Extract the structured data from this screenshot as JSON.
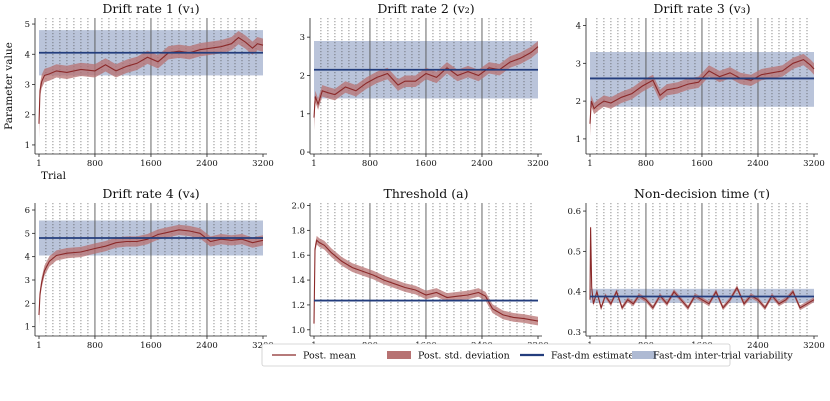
{
  "colors": {
    "mean": "#8b2a2a",
    "std": "#b77272",
    "estimate": "#233d7d",
    "variability": "#aebad3",
    "vline": "#555555",
    "axis": "#222222"
  },
  "chart_data": [
    {
      "type": "line",
      "title": "Drift rate 1 (v₁)",
      "ylabel": "Parameter value",
      "xlabel": "Trial",
      "x_ticks": [
        1,
        800,
        1600,
        2400,
        3200
      ],
      "xlim": [
        1,
        3200
      ],
      "ylim": [
        0.7,
        5.2
      ],
      "y_ticks": [
        1,
        2,
        3,
        4,
        5
      ],
      "estimate": 4.05,
      "variability": [
        3.3,
        4.8
      ],
      "std_width": 0.22,
      "solid_lines": [
        800,
        1600,
        2400
      ],
      "dotted_spacing": 100,
      "series": [
        {
          "name": "Post. mean",
          "x": [
            1,
            15,
            40,
            80,
            150,
            250,
            400,
            600,
            800,
            950,
            1100,
            1250,
            1400,
            1550,
            1700,
            1850,
            2000,
            2150,
            2300,
            2450,
            2600,
            2750,
            2850,
            2950,
            3050,
            3120,
            3200
          ],
          "y": [
            1.7,
            2.8,
            3.1,
            3.3,
            3.35,
            3.45,
            3.4,
            3.5,
            3.45,
            3.65,
            3.45,
            3.6,
            3.7,
            3.9,
            3.75,
            4.05,
            4.1,
            4.05,
            4.15,
            4.2,
            4.25,
            4.35,
            4.55,
            4.4,
            4.2,
            4.35,
            4.3
          ]
        }
      ]
    },
    {
      "type": "line",
      "title": "Drift rate 2 (v₂)",
      "x_ticks": [
        1,
        800,
        1600,
        2400,
        3200
      ],
      "xlim": [
        1,
        3200
      ],
      "ylim": [
        -0.05,
        3.5
      ],
      "y_ticks": [
        0,
        1,
        2,
        3
      ],
      "estimate": 2.15,
      "variability": [
        1.4,
        2.9
      ],
      "std_width": 0.15,
      "solid_lines": [
        800,
        1600,
        2400
      ],
      "dotted_spacing": 100,
      "series": [
        {
          "name": "Post. mean",
          "x": [
            1,
            20,
            60,
            120,
            200,
            300,
            450,
            600,
            750,
            900,
            1050,
            1200,
            1300,
            1450,
            1600,
            1750,
            1900,
            2050,
            2200,
            2350,
            2500,
            2650,
            2800,
            2950,
            3100,
            3200
          ],
          "y": [
            0.9,
            1.45,
            1.25,
            1.6,
            1.55,
            1.5,
            1.7,
            1.6,
            1.8,
            1.95,
            2.05,
            1.75,
            1.85,
            1.85,
            2.05,
            1.95,
            2.2,
            2.0,
            2.1,
            2.0,
            2.2,
            2.15,
            2.35,
            2.45,
            2.6,
            2.75
          ]
        }
      ]
    },
    {
      "type": "line",
      "title": "Drift rate 3 (v₃)",
      "x_ticks": [
        1,
        800,
        1600,
        2400,
        3200
      ],
      "xlim": [
        1,
        3200
      ],
      "ylim": [
        0.6,
        4.2
      ],
      "y_ticks": [
        1,
        2,
        3,
        4
      ],
      "estimate": 2.6,
      "variability": [
        1.85,
        3.3
      ],
      "std_width": 0.15,
      "solid_lines": [
        800,
        1600,
        2400
      ],
      "dotted_spacing": 100,
      "series": [
        {
          "name": "Post. mean",
          "x": [
            1,
            20,
            60,
            120,
            200,
            300,
            450,
            600,
            750,
            900,
            1000,
            1100,
            1250,
            1400,
            1550,
            1700,
            1850,
            2000,
            2150,
            2300,
            2450,
            2600,
            2750,
            2900,
            3050,
            3150,
            3200
          ],
          "y": [
            1.4,
            2.0,
            1.8,
            1.9,
            2.0,
            1.95,
            2.1,
            2.2,
            2.4,
            2.55,
            2.15,
            2.3,
            2.35,
            2.45,
            2.5,
            2.8,
            2.65,
            2.75,
            2.6,
            2.55,
            2.7,
            2.75,
            2.8,
            3.0,
            3.1,
            2.95,
            2.85
          ]
        }
      ]
    },
    {
      "type": "line",
      "title": "Drift rate 4 (v₄)",
      "x_ticks": [
        1,
        800,
        1600,
        2400,
        3200
      ],
      "xlim": [
        1,
        3200
      ],
      "ylim": [
        0.6,
        6.3
      ],
      "y_ticks": [
        1,
        2,
        3,
        4,
        5,
        6
      ],
      "estimate": 4.8,
      "variability": [
        4.05,
        5.55
      ],
      "std_width": 0.22,
      "solid_lines": [
        800,
        1600,
        2400
      ],
      "dotted_spacing": 100,
      "series": [
        {
          "name": "Post. mean",
          "x": [
            1,
            15,
            40,
            80,
            150,
            250,
            400,
            600,
            800,
            950,
            1100,
            1250,
            1400,
            1550,
            1700,
            1850,
            2000,
            2150,
            2300,
            2450,
            2600,
            2750,
            2900,
            3050,
            3200
          ],
          "y": [
            1.5,
            2.4,
            2.9,
            3.4,
            3.8,
            4.05,
            4.15,
            4.2,
            4.35,
            4.45,
            4.6,
            4.65,
            4.65,
            4.75,
            4.95,
            5.05,
            5.15,
            5.1,
            5.0,
            4.65,
            4.75,
            4.7,
            4.75,
            4.6,
            4.7
          ]
        }
      ]
    },
    {
      "type": "line",
      "title": "Threshold (a)",
      "x_ticks": [
        1,
        800,
        1600,
        2400,
        3200
      ],
      "xlim": [
        1,
        3200
      ],
      "ylim": [
        0.95,
        2.02
      ],
      "y_ticks": [
        1.0,
        1.2,
        1.4,
        1.6,
        1.8,
        2.0
      ],
      "y_decimals": 1,
      "estimate": 1.235,
      "std_width": 0.035,
      "solid_lines": [
        800,
        1600,
        2400
      ],
      "dotted_spacing": 100,
      "series": [
        {
          "name": "Post. mean",
          "x": [
            1,
            15,
            40,
            80,
            150,
            250,
            400,
            550,
            700,
            850,
            1000,
            1150,
            1300,
            1450,
            1600,
            1750,
            1900,
            2050,
            2200,
            2350,
            2450,
            2550,
            2700,
            2850,
            3000,
            3100,
            3200
          ],
          "y": [
            1.05,
            1.65,
            1.72,
            1.7,
            1.68,
            1.62,
            1.55,
            1.5,
            1.47,
            1.44,
            1.4,
            1.37,
            1.34,
            1.32,
            1.28,
            1.3,
            1.26,
            1.27,
            1.28,
            1.3,
            1.27,
            1.17,
            1.12,
            1.1,
            1.09,
            1.08,
            1.07
          ]
        }
      ]
    },
    {
      "type": "line",
      "title": "Non-decision time (τ)",
      "x_ticks": [
        1,
        800,
        1600,
        2400,
        3200
      ],
      "xlim": [
        1,
        3200
      ],
      "ylim": [
        0.29,
        0.62
      ],
      "y_ticks": [
        0.3,
        0.4,
        0.5,
        0.6
      ],
      "y_decimals": 1,
      "estimate": 0.388,
      "variability": [
        0.372,
        0.407
      ],
      "std_width": 0.006,
      "solid_lines": [
        800,
        1600,
        2400
      ],
      "dotted_spacing": 100,
      "series": [
        {
          "name": "Post. mean",
          "x": [
            1,
            10,
            25,
            50,
            100,
            160,
            220,
            300,
            380,
            460,
            540,
            620,
            700,
            800,
            900,
            1000,
            1100,
            1200,
            1300,
            1400,
            1500,
            1600,
            1700,
            1800,
            1900,
            2000,
            2100,
            2200,
            2300,
            2400,
            2500,
            2600,
            2700,
            2800,
            2900,
            3000,
            3100,
            3200
          ],
          "y": [
            0.38,
            0.56,
            0.41,
            0.37,
            0.4,
            0.36,
            0.39,
            0.37,
            0.4,
            0.36,
            0.38,
            0.37,
            0.39,
            0.38,
            0.36,
            0.39,
            0.37,
            0.4,
            0.38,
            0.36,
            0.39,
            0.38,
            0.37,
            0.4,
            0.36,
            0.38,
            0.41,
            0.37,
            0.39,
            0.38,
            0.36,
            0.39,
            0.37,
            0.38,
            0.4,
            0.36,
            0.37,
            0.38
          ]
        }
      ]
    }
  ],
  "legend": [
    {
      "key": "mean",
      "label": "Post. mean"
    },
    {
      "key": "std",
      "label": "Post. std. deviation"
    },
    {
      "key": "estimate",
      "label": "Fast-dm estimate"
    },
    {
      "key": "variability",
      "label": "Fast-dm inter-trial variability"
    }
  ]
}
